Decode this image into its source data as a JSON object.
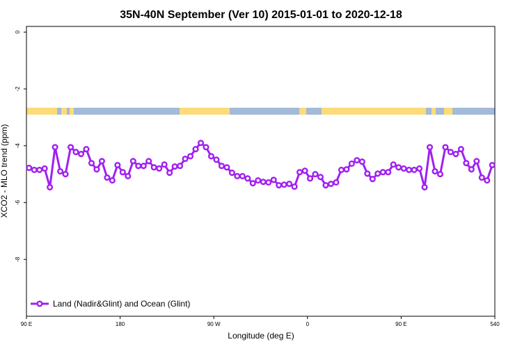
{
  "chart_data": {
    "type": "line",
    "title": "35N-40N September (Ver 10)   2015-01-01 to 2020-12-18",
    "x_label": "Longitude (deg E)",
    "y_label": "XCO2 - MLO trend (ppm)",
    "xlim": [
      90,
      540
    ],
    "ylim": [
      -10,
      0.2
    ],
    "xticks": [
      {
        "value": 90,
        "label": "90 E"
      },
      180,
      {
        "value": 270,
        "label": "90 W"
      },
      {
        "value": 360,
        "label": "0"
      },
      {
        "value": 450,
        "label": "90 E"
      },
      540
    ],
    "yticks": [
      0,
      -2,
      -4,
      -6,
      -8
    ],
    "legend": "bottomleft",
    "x": [
      92.5,
      97.5,
      102.5,
      107.5,
      112.5,
      117.5,
      122.5,
      127.5,
      132.5,
      137.5,
      142.5,
      147.5,
      152.5,
      157.5,
      162.5,
      167.5,
      172.5,
      177.5,
      182.5,
      187.5,
      192.5,
      197.5,
      202.5,
      207.5,
      212.5,
      217.5,
      222.5,
      227.5,
      232.5,
      237.5,
      242.5,
      247.5,
      252.5,
      257.5,
      262.5,
      267.5,
      272.5,
      277.5,
      282.5,
      287.5,
      292.5,
      297.5,
      302.5,
      307.5,
      312.5,
      317.5,
      322.5,
      327.5,
      332.5,
      337.5,
      342.5,
      347.5,
      352.5,
      357.5,
      362.5,
      367.5,
      372.5,
      377.5,
      382.5,
      387.5,
      392.5,
      397.5,
      402.5,
      407.5,
      412.5,
      417.5,
      422.5,
      427.5,
      432.5,
      437.5,
      442.5,
      447.5,
      452.5,
      457.5,
      462.5,
      467.5,
      472.5,
      477.5,
      482.5,
      487.5,
      492.5,
      497.5,
      502.5,
      507.5,
      512.5,
      517.5,
      522.5,
      527.5,
      532.5,
      537.5
    ],
    "series": [
      {
        "name": "Land (Nadir&Glint) and Ocean (Glint)",
        "color": "#a020f0",
        "values": [
          -4.78,
          -4.85,
          -4.85,
          -4.8,
          -5.46,
          -4.05,
          -4.9,
          -5.0,
          -4.05,
          -4.22,
          -4.29,
          -4.12,
          -4.61,
          -4.83,
          -4.54,
          -5.12,
          -5.22,
          -4.68,
          -4.93,
          -5.07,
          -4.54,
          -4.71,
          -4.71,
          -4.54,
          -4.76,
          -4.8,
          -4.66,
          -4.95,
          -4.73,
          -4.71,
          -4.46,
          -4.37,
          -4.12,
          -3.9,
          -4.05,
          -4.37,
          -4.49,
          -4.71,
          -4.76,
          -4.95,
          -5.07,
          -5.07,
          -5.15,
          -5.32,
          -5.22,
          -5.27,
          -5.29,
          -5.2,
          -5.39,
          -5.37,
          -5.34,
          -5.44,
          -4.93,
          -4.88,
          -5.15,
          -5.0,
          -5.1,
          -5.39,
          -5.34,
          -5.29,
          -4.85,
          -4.83,
          -4.63,
          -4.51,
          -4.56,
          -4.98,
          -5.17,
          -4.98,
          -4.93,
          -4.93,
          -4.66,
          -4.76,
          -4.8,
          -4.85,
          -4.85,
          -4.8,
          -5.46,
          -4.05,
          -4.9,
          -5.0,
          -4.05,
          -4.22,
          -4.29,
          -4.12,
          -4.61,
          -4.83,
          -4.54,
          -5.12,
          -5.22,
          -4.68
        ]
      }
    ]
  }
}
